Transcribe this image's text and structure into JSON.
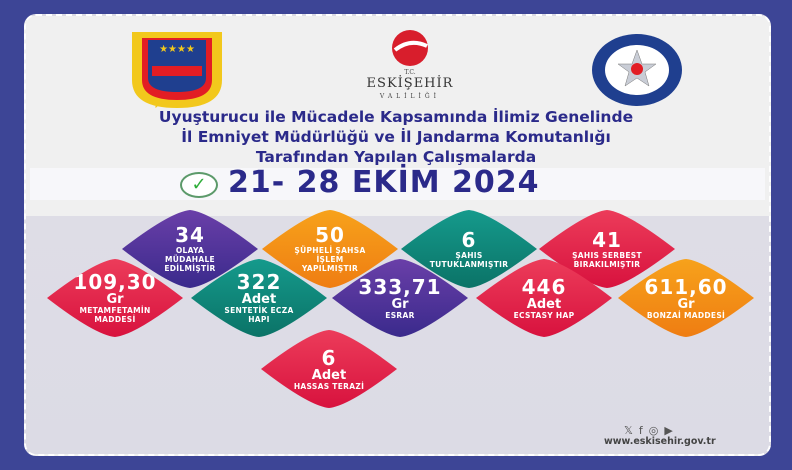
{
  "logos": {
    "left": "JANDARMA",
    "center_top": "T.C.",
    "center_main": "ESKİŞEHİR",
    "center_sub": "VALİLİĞİ",
    "right": "ESKİŞEHİR EMNİYET MÜDÜRLÜĞÜ",
    "right_badge": "EGM"
  },
  "title": {
    "line1": "Uyuşturucu ile Mücadele Kapsamında İlimiz Genelinde",
    "line2": "İl Emniyet Müdürlüğü ve İl Jandarma Komutanlığı",
    "line3": "Tarafından Yapılan Çalışmalarda"
  },
  "date": "21- 28 EKİM 2024",
  "stats": [
    {
      "num": "34",
      "unit": "",
      "label": "OLAYA MÜDAHALE EDİLMİŞTİR",
      "color": "#4b2f96"
    },
    {
      "num": "50",
      "unit": "",
      "label": "ŞÜPHELİ ŞAHSA İŞLEM YAPILMIŞTIR",
      "color": "#f3901a"
    },
    {
      "num": "6",
      "unit": "",
      "label": "ŞAHIS TUTUKLANMIŞTIR",
      "color": "#0f8377"
    },
    {
      "num": "41",
      "unit": "",
      "label": "ŞAHIS SERBEST BIRAKILMIŞTIR",
      "color": "#e1254b"
    },
    {
      "num": "109,30",
      "unit": "Gr",
      "label": "METAMFETAMİN MADDESİ",
      "color": "#e1254b"
    },
    {
      "num": "322",
      "unit": "Adet",
      "label": "SENTETİK ECZA HAPI",
      "color": "#0f8377"
    },
    {
      "num": "333,71",
      "unit": "Gr",
      "label": "ESRAR",
      "color": "#4b2f96"
    },
    {
      "num": "446",
      "unit": "Adet",
      "label": "ECSTASY HAP",
      "color": "#e1254b"
    },
    {
      "num": "611,60",
      "unit": "Gr",
      "label": "BONZAİ MADDESİ",
      "color": "#f3901a"
    },
    {
      "num": "6",
      "unit": "Adet",
      "label": "HASSAS TERAZİ",
      "color": "#e1254b"
    }
  ],
  "footer": {
    "social": [
      "x-icon",
      "facebook-icon",
      "instagram-icon",
      "youtube-icon"
    ],
    "url": "www.eskisehir.gov.tr"
  }
}
